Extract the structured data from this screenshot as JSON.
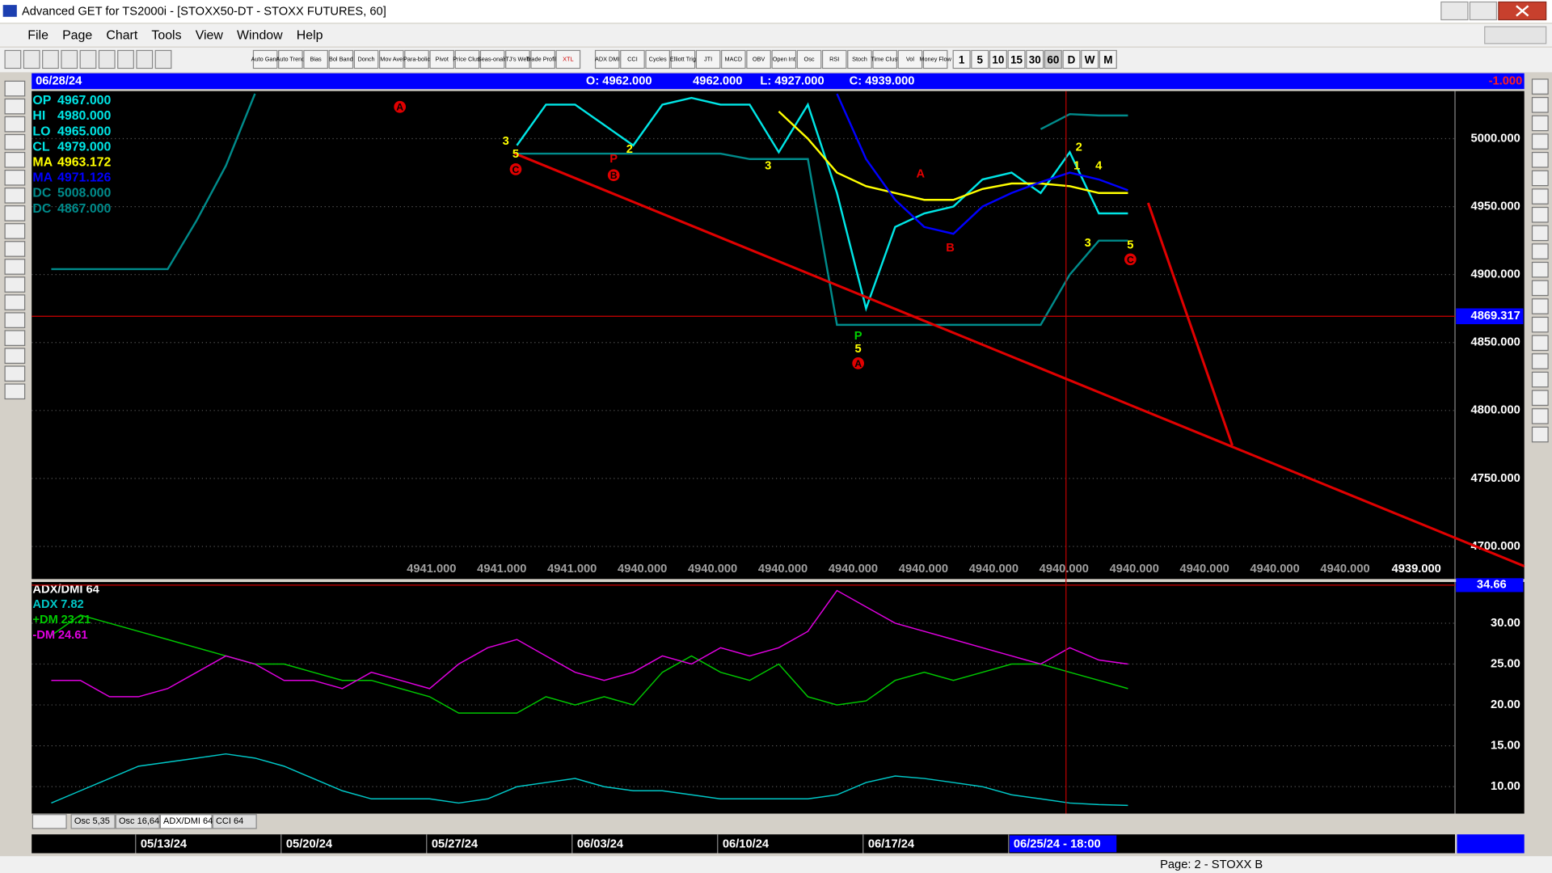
{
  "window": {
    "title": "Advanced GET for TS2000i - [STOXX50-DT - STOXX FUTURES, 60]"
  },
  "menu": [
    "File",
    "Page",
    "Chart",
    "Tools",
    "View",
    "Window",
    "Help"
  ],
  "toolbar": [
    "Auto Gann",
    "Auto Trend",
    "Bias",
    "Bol Band",
    "Donch",
    "Mov Ave",
    "Para-bolic",
    "Pivot",
    "Price Clust",
    "Seas-onals",
    "TJ's Web",
    "Trade Profile",
    "XTL",
    "ADX DMI",
    "CCI",
    "Cycles",
    "Elliott Trig",
    "JTI",
    "MACD",
    "OBV",
    "Open Int",
    "Osc",
    "RSI",
    "Stoch",
    "Time Clust",
    "Vol",
    "Money Flow"
  ],
  "periods": [
    "1",
    "5",
    "10",
    "15",
    "30",
    "60",
    "D",
    "W",
    "M"
  ],
  "quote": {
    "date": "06/28/24",
    "open": "O: 4962.000",
    "high": "4962.000",
    "low": "L: 4927.000",
    "close": "C: 4939.000",
    "change": "-1.000"
  },
  "info": [
    {
      "label": "OP",
      "value": "4967.000"
    },
    {
      "label": "HI",
      "value": "4980.000"
    },
    {
      "label": "LO",
      "value": "4965.000"
    }
  ],
  "wave_labels": [
    "A",
    "3",
    "5",
    "C",
    "P",
    "B",
    "2",
    "3",
    "A",
    "B",
    "P",
    "5",
    "A",
    "3",
    "1",
    "4",
    "2",
    "5",
    "C"
  ],
  "price_row": [
    "4941.000",
    "4941.000",
    "4941.000",
    "4940.000",
    "4940.000",
    "4940.000",
    "4940.000",
    "4940.000",
    "4940.000",
    "4940.000",
    "4940.000",
    "4940.000",
    "4940.000",
    "4940.000"
  ],
  "last_price": "4939.000",
  "tabs": [
    "Osc 5,35",
    "Osc 16,64",
    "ADX/DMI 64",
    "CCI 64"
  ],
  "status": "Page: 2 - STOXX B",
  "chart_data": [
    {
      "type": "line",
      "categories": [
        null,
        null,
        null,
        "05/13/24",
        null,
        null,
        null,
        null,
        "05/20/24",
        null,
        null,
        null,
        null,
        "05/27/24",
        null,
        null,
        null,
        null,
        "06/03/24",
        null,
        null,
        null,
        null,
        "06/10/24",
        null,
        null,
        null,
        null,
        "06/17/24",
        null,
        null,
        null,
        null,
        "06/25/24 - 18:00",
        null,
        null,
        null,
        null
      ],
      "series": [
        {
          "name": "CL",
          "readout": "4979.000",
          "color": "#00e5e5",
          "values": [
            null,
            null,
            null,
            null,
            null,
            null,
            null,
            null,
            null,
            null,
            null,
            null,
            null,
            null,
            null,
            null,
            4995,
            5025,
            5025,
            5010,
            4995,
            5025,
            5030,
            5025,
            5025,
            4990,
            5025,
            4960,
            4875,
            4935,
            4945,
            4950,
            4970,
            4975,
            4960,
            4990,
            4945,
            4945
          ]
        },
        {
          "name": "MA",
          "readout": "4963.172",
          "color": "#ffff00",
          "values": [
            null,
            null,
            null,
            null,
            null,
            null,
            null,
            null,
            null,
            null,
            null,
            null,
            null,
            null,
            null,
            null,
            null,
            null,
            null,
            null,
            null,
            null,
            null,
            null,
            null,
            5020,
            5000,
            4975,
            4965,
            4960,
            4955,
            4955,
            4963,
            4967,
            4967,
            4965,
            4960,
            4960
          ]
        },
        {
          "name": "MA",
          "readout": "4971.126",
          "color": "#0000ff",
          "values": [
            null,
            null,
            null,
            null,
            null,
            null,
            null,
            null,
            null,
            null,
            null,
            null,
            null,
            null,
            null,
            null,
            null,
            null,
            null,
            null,
            null,
            null,
            null,
            null,
            null,
            null,
            null,
            5033,
            4985,
            4955,
            4935,
            4930,
            4950,
            4960,
            4968,
            4975,
            4970,
            4962
          ]
        },
        {
          "name": "DC",
          "readout": "5008.000",
          "color": "#008b8b",
          "values": [
            4904,
            4904,
            4904,
            4904,
            4904,
            4940,
            4980,
            5033,
            null,
            null,
            null,
            null,
            null,
            null,
            null,
            null,
            null,
            null,
            null,
            null,
            null,
            null,
            null,
            null,
            null,
            null,
            null,
            null,
            null,
            null,
            null,
            null,
            null,
            null,
            5007,
            5018,
            5017,
            5017
          ]
        },
        {
          "name": "DC",
          "readout": "4867.000",
          "color": "#008b8b",
          "values": [
            null,
            null,
            null,
            null,
            null,
            null,
            null,
            null,
            null,
            null,
            null,
            null,
            null,
            null,
            null,
            null,
            4989,
            4989,
            4989,
            4989,
            4989,
            4989,
            4989,
            4989,
            4985,
            4985,
            4985,
            4863,
            4863,
            4863,
            4863,
            4863,
            4863,
            4863,
            4863,
            4900,
            4925,
            4925
          ]
        }
      ],
      "cursor_price": 4869.317,
      "ylim": [
        4676,
        5035
      ],
      "yticks": [
        {
          "value": 4700,
          "label": "4700.000"
        },
        {
          "value": 4750,
          "label": "4750.000"
        },
        {
          "value": 4800,
          "label": "4800.000"
        },
        {
          "value": 4850,
          "label": "4850.000"
        },
        {
          "value": 4900,
          "label": "4900.000"
        },
        {
          "value": 4950,
          "label": "4950.000"
        },
        {
          "value": 5000,
          "label": "5000.000"
        }
      ],
      "grid": true
    },
    {
      "type": "line",
      "title": "ADX/DMI 64",
      "series": [
        {
          "name": "ADX",
          "readout": "7.82",
          "color": "#00c8c8",
          "values": [
            8,
            9.5,
            11,
            12.5,
            13,
            13.5,
            14,
            13.5,
            12.5,
            11,
            9.5,
            8.5,
            8.5,
            8.5,
            8,
            8.5,
            10,
            10.5,
            11,
            10,
            9.5,
            9.5,
            9,
            8.5,
            8.5,
            8.5,
            8.5,
            9,
            10.5,
            11.3,
            11,
            10.5,
            10,
            9,
            8.5,
            8,
            7.8,
            7.7
          ]
        },
        {
          "name": "+DM",
          "readout": "23.21",
          "color": "#00c800",
          "values": [
            28.5,
            31,
            30,
            29,
            28,
            27,
            26,
            25,
            25,
            24,
            23,
            23,
            22,
            21,
            19,
            19,
            19,
            21,
            20,
            21,
            20,
            24,
            26,
            24,
            23,
            25,
            21,
            20,
            20.5,
            23,
            24,
            23,
            24,
            25,
            25,
            24,
            23,
            22
          ]
        },
        {
          "name": "-DM",
          "readout": "24.61",
          "color": "#e000e0",
          "values": [
            23,
            23,
            21,
            21,
            22,
            24,
            26,
            25,
            23,
            23,
            22,
            24,
            23,
            22,
            25,
            27,
            28,
            26,
            24,
            23,
            24,
            26,
            25,
            27,
            26,
            27,
            29,
            34,
            32,
            30,
            29,
            28,
            27,
            26,
            25,
            27,
            25.5,
            25
          ]
        }
      ],
      "marker": 34.66,
      "ylim": [
        6.7,
        34.8
      ],
      "yticks": [
        {
          "value": 10,
          "label": "10.00"
        },
        {
          "value": 15,
          "label": "15.00"
        },
        {
          "value": 20,
          "label": "20.00"
        },
        {
          "value": 25,
          "label": "25.00"
        },
        {
          "value": 30,
          "label": "30.00"
        }
      ],
      "grid": true
    }
  ]
}
